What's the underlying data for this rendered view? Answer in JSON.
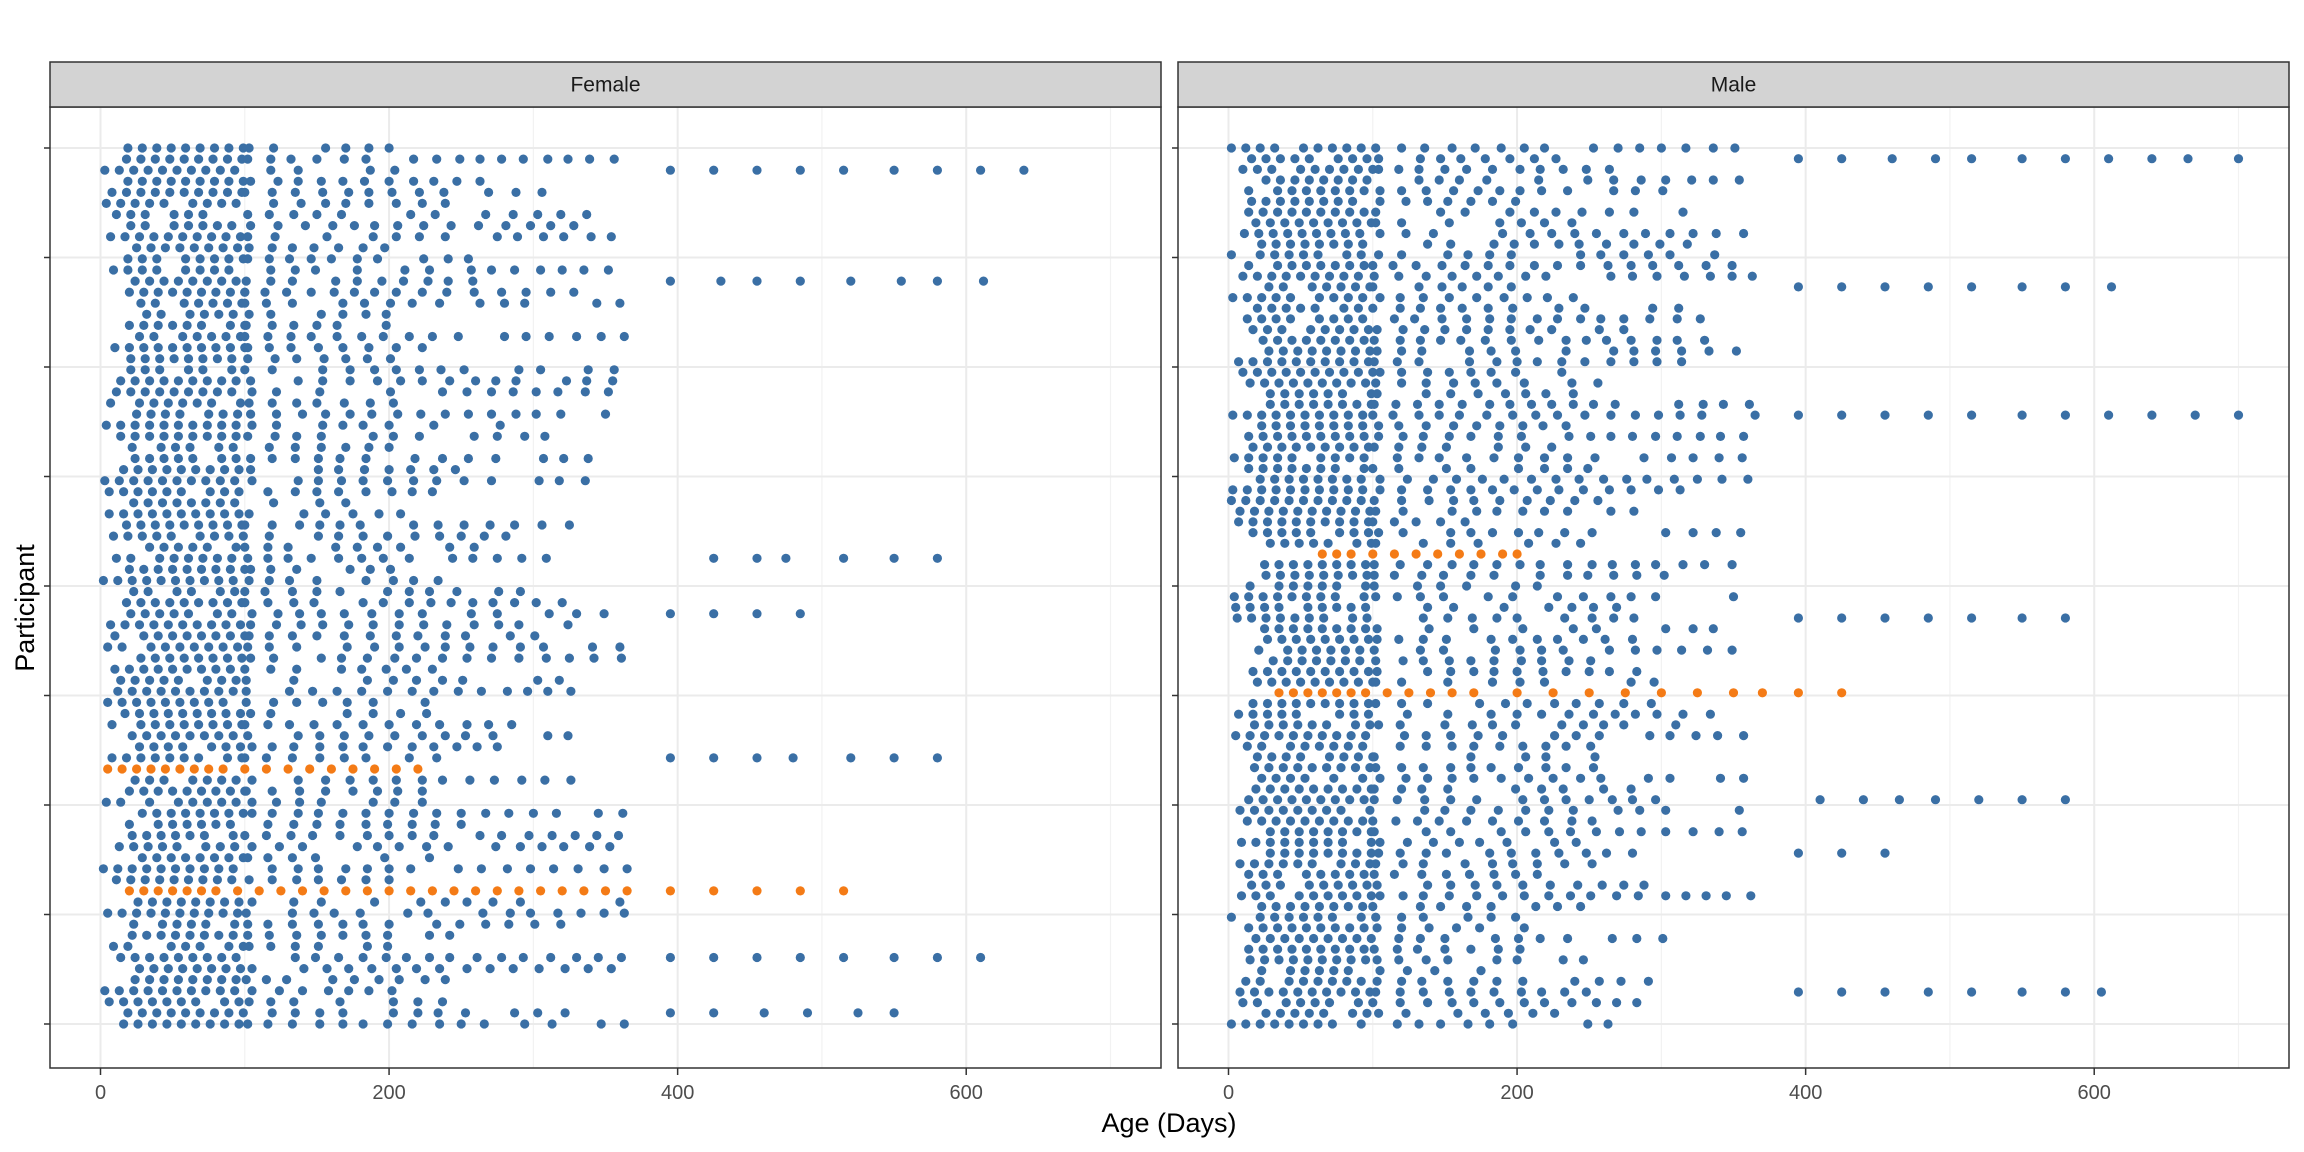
{
  "chart_data": {
    "type": "scatter",
    "xlabel": "Age (Days)",
    "ylabel": "Participant",
    "xlim": [
      -35,
      735
    ],
    "x_ticks": [
      0,
      200,
      400,
      600
    ],
    "x_minor_ticks": [
      100,
      300,
      500,
      700
    ],
    "grid": true,
    "legend": "none",
    "colors": {
      "normal": "#3a6fa5",
      "highlight": "#f47b16",
      "strip": "#d3d3d3",
      "grid": "#ebebeb",
      "border": "#333333"
    },
    "panels": [
      {
        "facet": "Female",
        "n_participants": 80,
        "highlighted_rows": [
          {
            "row": 23,
            "x": [
              5,
              15,
              25,
              35,
              45,
              55,
              65,
              75,
              85,
              100,
              115,
              130,
              145,
              160,
              175,
              190,
              205,
              220
            ]
          },
          {
            "row": 12,
            "x": [
              20,
              30,
              40,
              50,
              60,
              70,
              80,
              95,
              110,
              125,
              140,
              155,
              170,
              185,
              200,
              215,
              230,
              245,
              260,
              275,
              290,
              305,
              320,
              335,
              350,
              365,
              395,
              425,
              455,
              485,
              515
            ]
          }
        ],
        "long_rows": [
          {
            "row": 77,
            "x": [
              395,
              425,
              455,
              485,
              515,
              550,
              580,
              610,
              640
            ]
          },
          {
            "row": 67,
            "x": [
              395,
              430,
              455,
              485,
              520,
              555,
              580,
              612
            ]
          },
          {
            "row": 42,
            "x": [
              425,
              455,
              475,
              515,
              550,
              580
            ]
          },
          {
            "row": 37,
            "x": [
              395,
              425,
              455,
              485
            ]
          },
          {
            "row": 24,
            "x": [
              395,
              425,
              455,
              480,
              520,
              550,
              580
            ]
          },
          {
            "row": 6,
            "x": [
              395,
              425,
              455,
              485,
              515,
              550,
              580,
              610
            ]
          },
          {
            "row": 1,
            "x": [
              395,
              425,
              460,
              490,
              525,
              550
            ]
          }
        ]
      },
      {
        "facet": "Male",
        "n_participants": 83,
        "highlighted_rows": [
          {
            "row": 44,
            "x": [
              65,
              75,
              85,
              100,
              115,
              130,
              145,
              160,
              175,
              190,
              200
            ]
          },
          {
            "row": 31,
            "x": [
              35,
              45,
              55,
              65,
              75,
              85,
              95,
              110,
              125,
              140,
              155,
              170,
              200,
              225,
              250,
              275,
              300,
              325,
              350,
              370,
              395,
              425
            ]
          }
        ],
        "long_rows": [
          {
            "row": 81,
            "x": [
              395,
              425,
              460,
              490,
              515,
              550,
              580,
              610,
              640,
              665,
              700
            ]
          },
          {
            "row": 69,
            "x": [
              395,
              425,
              455,
              485,
              515,
              550,
              580,
              612
            ]
          },
          {
            "row": 57,
            "x": [
              395,
              425,
              455,
              485,
              515,
              550,
              580,
              610,
              640,
              670,
              700
            ]
          },
          {
            "row": 38,
            "x": [
              395,
              425,
              455,
              485,
              515,
              550,
              580
            ]
          },
          {
            "row": 21,
            "x": [
              410,
              440,
              465,
              490,
              520,
              550,
              580
            ]
          },
          {
            "row": 16,
            "x": [
              395,
              425,
              455
            ]
          },
          {
            "row": 3,
            "x": [
              395,
              425,
              455,
              485,
              515,
              550,
              580,
              605
            ]
          }
        ]
      }
    ]
  }
}
